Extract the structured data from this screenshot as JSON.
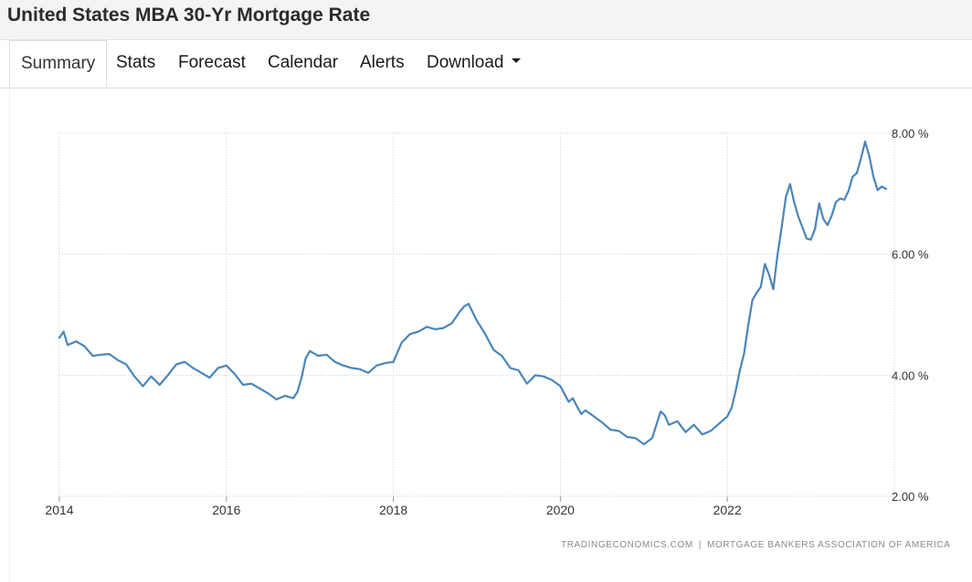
{
  "page": {
    "title": "United States MBA 30-Yr Mortgage Rate"
  },
  "tabs": [
    {
      "label": "Summary",
      "active": true
    },
    {
      "label": "Stats"
    },
    {
      "label": "Forecast"
    },
    {
      "label": "Calendar"
    },
    {
      "label": "Alerts"
    },
    {
      "label": "Download",
      "has_dropdown": true
    }
  ],
  "source": {
    "site": "TRADINGECONOMICS.COM",
    "separator": "|",
    "provider": "MORTGAGE BANKERS ASSOCIATION OF AMERICA"
  },
  "colors": {
    "series_line": "#4a86b8",
    "grid": "#cfcfcf",
    "axis_text": "#333333"
  },
  "chart_data": {
    "type": "line",
    "title": "",
    "xlabel": "",
    "ylabel": "",
    "x_ticks": [
      "2014",
      "2016",
      "2018",
      "2020",
      "2022"
    ],
    "y_ticks": [
      "2.00 %",
      "4.00 %",
      "6.00 %",
      "8.00 %"
    ],
    "xlim": [
      2014.0,
      2024.0
    ],
    "ylim": [
      2.0,
      8.0
    ],
    "grid": true,
    "y_axis_side": "right",
    "series": [
      {
        "x": [
          2014.0,
          2014.05,
          2014.1,
          2014.2,
          2014.3,
          2014.4,
          2014.5,
          2014.6,
          2014.7,
          2014.8,
          2014.9,
          2015.0,
          2015.1,
          2015.2,
          2015.3,
          2015.4,
          2015.5,
          2015.6,
          2015.7,
          2015.8,
          2015.9,
          2016.0,
          2016.1,
          2016.2,
          2016.3,
          2016.4,
          2016.5,
          2016.6,
          2016.7,
          2016.8,
          2016.85,
          2016.9,
          2016.95,
          2017.0,
          2017.1,
          2017.2,
          2017.3,
          2017.4,
          2017.5,
          2017.6,
          2017.7,
          2017.8,
          2017.9,
          2018.0,
          2018.1,
          2018.2,
          2018.3,
          2018.4,
          2018.5,
          2018.6,
          2018.7,
          2018.8,
          2018.85,
          2018.9,
          2019.0,
          2019.1,
          2019.2,
          2019.3,
          2019.4,
          2019.5,
          2019.6,
          2019.7,
          2019.8,
          2019.9,
          2020.0,
          2020.1,
          2020.15,
          2020.2,
          2020.25,
          2020.3,
          2020.4,
          2020.5,
          2020.6,
          2020.7,
          2020.8,
          2020.9,
          2021.0,
          2021.1,
          2021.2,
          2021.25,
          2021.3,
          2021.4,
          2021.5,
          2021.6,
          2021.7,
          2021.8,
          2021.9,
          2022.0,
          2022.05,
          2022.1,
          2022.15,
          2022.2,
          2022.25,
          2022.3,
          2022.35,
          2022.4,
          2022.45,
          2022.5,
          2022.55,
          2022.6,
          2022.65,
          2022.7,
          2022.75,
          2022.8,
          2022.85,
          2022.9,
          2022.95,
          2023.0,
          2023.05,
          2023.1,
          2023.15,
          2023.2,
          2023.25,
          2023.3,
          2023.35,
          2023.4,
          2023.45,
          2023.5,
          2023.55,
          2023.6,
          2023.65,
          2023.7,
          2023.75,
          2023.8,
          2023.85,
          2023.9
        ],
        "values": [
          4.62,
          4.72,
          4.5,
          4.56,
          4.48,
          4.32,
          4.34,
          4.35,
          4.25,
          4.18,
          3.98,
          3.82,
          3.98,
          3.84,
          4.0,
          4.18,
          4.22,
          4.12,
          4.04,
          3.96,
          4.12,
          4.16,
          4.02,
          3.84,
          3.86,
          3.78,
          3.7,
          3.6,
          3.66,
          3.62,
          3.72,
          3.96,
          4.28,
          4.4,
          4.32,
          4.34,
          4.22,
          4.16,
          4.12,
          4.1,
          4.04,
          4.16,
          4.2,
          4.22,
          4.54,
          4.68,
          4.72,
          4.8,
          4.76,
          4.78,
          4.86,
          5.06,
          5.14,
          5.18,
          4.9,
          4.68,
          4.42,
          4.32,
          4.12,
          4.08,
          3.86,
          4.0,
          3.98,
          3.92,
          3.82,
          3.56,
          3.62,
          3.48,
          3.36,
          3.42,
          3.32,
          3.22,
          3.1,
          3.08,
          2.98,
          2.96,
          2.86,
          2.96,
          3.4,
          3.34,
          3.18,
          3.24,
          3.06,
          3.18,
          3.02,
          3.08,
          3.2,
          3.32,
          3.46,
          3.74,
          4.08,
          4.36,
          4.82,
          5.24,
          5.36,
          5.46,
          5.84,
          5.66,
          5.42,
          5.98,
          6.44,
          6.94,
          7.16,
          6.86,
          6.62,
          6.44,
          6.26,
          6.24,
          6.42,
          6.84,
          6.58,
          6.48,
          6.64,
          6.86,
          6.92,
          6.9,
          7.04,
          7.28,
          7.34,
          7.58,
          7.86,
          7.62,
          7.28,
          7.06,
          7.12,
          7.08
        ],
        "_note": ""
      }
    ]
  }
}
